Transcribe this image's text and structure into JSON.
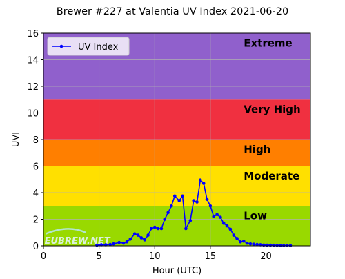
{
  "chart_data": {
    "type": "line",
    "title": "Brewer #227 at Valentia UV Index 2021-06-20",
    "xlabel": "Hour (UTC)",
    "ylabel": "UVI",
    "xlim": [
      0,
      24
    ],
    "ylim": [
      0,
      16
    ],
    "xticks": [
      0,
      5,
      10,
      15,
      20
    ],
    "yticks": [
      0,
      2,
      4,
      6,
      8,
      10,
      12,
      14,
      16
    ],
    "grid": true,
    "legend": {
      "position": "top-left",
      "entries": [
        "UV Index"
      ]
    },
    "watermark": "EUBREW.NET",
    "bands": [
      {
        "name": "Low",
        "from": 0,
        "to": 3,
        "color": "#99d900"
      },
      {
        "name": "Moderate",
        "from": 3,
        "to": 6,
        "color": "#ffe000"
      },
      {
        "name": "High",
        "from": 6,
        "to": 8,
        "color": "#ff7f00"
      },
      {
        "name": "Very High",
        "from": 8,
        "to": 11,
        "color": "#f03040"
      },
      {
        "name": "Extreme",
        "from": 11,
        "to": 16,
        "color": "#9060cc"
      }
    ],
    "series": [
      {
        "name": "UV Index",
        "color": "#0000ff",
        "x": [
          4.8,
          5.2,
          5.6,
          6.0,
          6.3,
          6.8,
          7.2,
          7.5,
          7.8,
          8.2,
          8.5,
          8.8,
          9.1,
          9.4,
          9.7,
          10.0,
          10.3,
          10.6,
          10.9,
          11.2,
          11.5,
          11.8,
          12.2,
          12.5,
          12.8,
          13.2,
          13.5,
          13.8,
          14.1,
          14.4,
          14.7,
          15.0,
          15.3,
          15.6,
          15.9,
          16.2,
          16.5,
          16.8,
          17.1,
          17.4,
          17.7,
          18.0,
          18.3,
          18.6,
          18.9,
          19.2,
          19.5,
          19.8,
          20.1,
          20.4,
          20.7,
          21.0,
          21.3,
          21.6,
          21.9,
          22.2
        ],
        "y": [
          0.05,
          0.08,
          0.08,
          0.1,
          0.15,
          0.25,
          0.2,
          0.3,
          0.5,
          0.9,
          0.8,
          0.6,
          0.45,
          0.8,
          1.3,
          1.4,
          1.3,
          1.3,
          2.0,
          2.5,
          3.0,
          3.75,
          3.4,
          3.75,
          1.3,
          1.9,
          3.4,
          3.3,
          4.95,
          4.7,
          3.5,
          3.0,
          2.2,
          2.35,
          2.15,
          1.7,
          1.5,
          1.25,
          0.8,
          0.55,
          0.3,
          0.35,
          0.2,
          0.15,
          0.12,
          0.1,
          0.08,
          0.06,
          0.05,
          0.05,
          0.04,
          0.03,
          0.03,
          0.02,
          0.02,
          0.02
        ]
      }
    ]
  }
}
